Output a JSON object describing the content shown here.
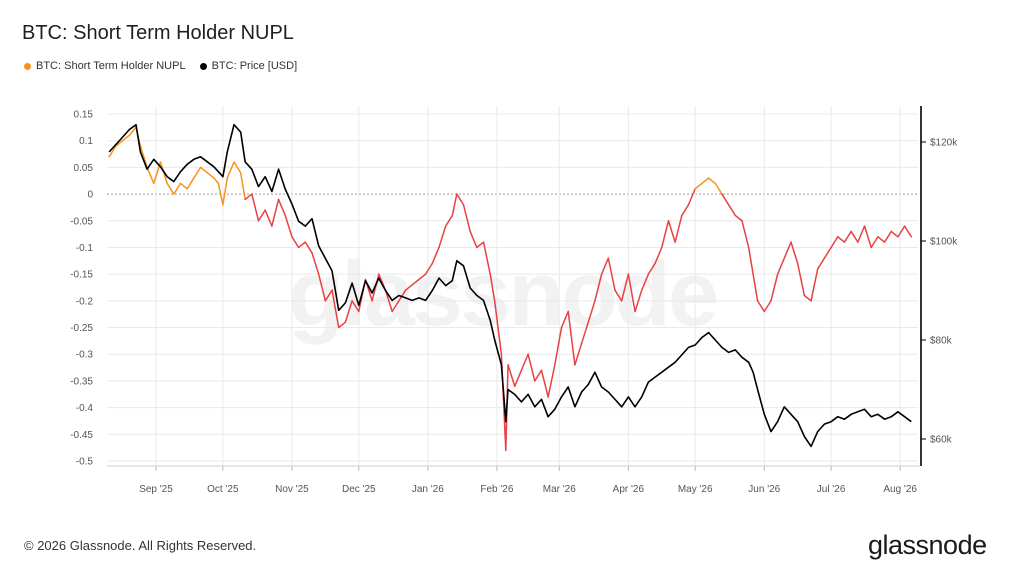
{
  "title": "BTC: Short Term Holder NUPL",
  "legend": [
    {
      "label": "BTC: Short Term Holder NUPL",
      "color": "#f7931a"
    },
    {
      "label": "BTC: Price [USD]",
      "color": "#000000"
    }
  ],
  "watermark": "glassnode",
  "footer": {
    "copyright": "© 2026 Glassnode. All Rights Reserved.",
    "brand": "glassnode"
  },
  "colors": {
    "nupl_positive": "#f7931a",
    "nupl_negative": "#e84142",
    "price": "#000000",
    "grid": "#e9e9e9"
  },
  "chart_data": {
    "type": "line",
    "title": "BTC: Short Term Holder NUPL",
    "x_tick_labels": [
      "Sep '25",
      "Oct '25",
      "Nov '25",
      "Dec '25",
      "Jan '26",
      "Feb '26",
      "Mar '26",
      "Apr '26",
      "May '26",
      "Jun '26",
      "Jul '26",
      "Aug '26"
    ],
    "y_left_ticks": [
      "0.15",
      "0.1",
      "0.05",
      "0",
      "-0.05",
      "-0.1",
      "-0.15",
      "-0.2",
      "-0.25",
      "-0.3",
      "-0.35",
      "-0.4",
      "-0.45",
      "-0.5"
    ],
    "y_left_lim": [
      -0.5,
      0.15
    ],
    "y_right_ticks": [
      "$120k",
      "$100k",
      "$80k",
      "$60k"
    ],
    "y_right_lim": [
      56000,
      128000
    ],
    "grid": true,
    "legend_position": "top-left",
    "series": [
      {
        "name": "BTC: Short Term Holder NUPL",
        "axis": "left",
        "points": [
          [
            "2025-08-11",
            0.07
          ],
          [
            "2025-08-14",
            0.09
          ],
          [
            "2025-08-17",
            0.1
          ],
          [
            "2025-08-20",
            0.11
          ],
          [
            "2025-08-23",
            0.125
          ],
          [
            "2025-08-25",
            0.09
          ],
          [
            "2025-08-28",
            0.05
          ],
          [
            "2025-08-31",
            0.02
          ],
          [
            "2025-09-03",
            0.06
          ],
          [
            "2025-09-06",
            0.02
          ],
          [
            "2025-09-09",
            0.0
          ],
          [
            "2025-09-12",
            0.02
          ],
          [
            "2025-09-15",
            0.01
          ],
          [
            "2025-09-18",
            0.03
          ],
          [
            "2025-09-21",
            0.05
          ],
          [
            "2025-09-24",
            0.04
          ],
          [
            "2025-09-27",
            0.03
          ],
          [
            "2025-09-29",
            0.02
          ],
          [
            "2025-10-01",
            -0.02
          ],
          [
            "2025-10-03",
            0.03
          ],
          [
            "2025-10-06",
            0.06
          ],
          [
            "2025-10-09",
            0.04
          ],
          [
            "2025-10-11",
            -0.01
          ],
          [
            "2025-10-14",
            0.0
          ],
          [
            "2025-10-17",
            -0.05
          ],
          [
            "2025-10-20",
            -0.03
          ],
          [
            "2025-10-23",
            -0.06
          ],
          [
            "2025-10-26",
            -0.01
          ],
          [
            "2025-10-29",
            -0.04
          ],
          [
            "2025-11-01",
            -0.08
          ],
          [
            "2025-11-04",
            -0.1
          ],
          [
            "2025-11-07",
            -0.09
          ],
          [
            "2025-11-10",
            -0.11
          ],
          [
            "2025-11-13",
            -0.15
          ],
          [
            "2025-11-16",
            -0.2
          ],
          [
            "2025-11-19",
            -0.18
          ],
          [
            "2025-11-22",
            -0.25
          ],
          [
            "2025-11-25",
            -0.24
          ],
          [
            "2025-11-28",
            -0.2
          ],
          [
            "2025-12-01",
            -0.22
          ],
          [
            "2025-12-04",
            -0.16
          ],
          [
            "2025-12-07",
            -0.2
          ],
          [
            "2025-12-10",
            -0.15
          ],
          [
            "2025-12-13",
            -0.18
          ],
          [
            "2025-12-16",
            -0.22
          ],
          [
            "2025-12-19",
            -0.2
          ],
          [
            "2025-12-22",
            -0.18
          ],
          [
            "2025-12-25",
            -0.17
          ],
          [
            "2025-12-28",
            -0.16
          ],
          [
            "2025-12-31",
            -0.15
          ],
          [
            "2026-01-03",
            -0.13
          ],
          [
            "2026-01-06",
            -0.1
          ],
          [
            "2026-01-09",
            -0.06
          ],
          [
            "2026-01-12",
            -0.04
          ],
          [
            "2026-01-14",
            0.0
          ],
          [
            "2026-01-17",
            -0.02
          ],
          [
            "2026-01-20",
            -0.07
          ],
          [
            "2026-01-23",
            -0.1
          ],
          [
            "2026-01-26",
            -0.09
          ],
          [
            "2026-01-29",
            -0.15
          ],
          [
            "2026-01-31",
            -0.2
          ],
          [
            "2026-02-03",
            -0.3
          ],
          [
            "2026-02-05",
            -0.48
          ],
          [
            "2026-02-06",
            -0.32
          ],
          [
            "2026-02-09",
            -0.36
          ],
          [
            "2026-02-12",
            -0.33
          ],
          [
            "2026-02-15",
            -0.3
          ],
          [
            "2026-02-18",
            -0.35
          ],
          [
            "2026-02-21",
            -0.33
          ],
          [
            "2026-02-24",
            -0.38
          ],
          [
            "2026-02-27",
            -0.32
          ],
          [
            "2026-03-02",
            -0.25
          ],
          [
            "2026-03-05",
            -0.22
          ],
          [
            "2026-03-08",
            -0.32
          ],
          [
            "2026-03-11",
            -0.28
          ],
          [
            "2026-03-14",
            -0.24
          ],
          [
            "2026-03-17",
            -0.2
          ],
          [
            "2026-03-20",
            -0.15
          ],
          [
            "2026-03-23",
            -0.12
          ],
          [
            "2026-03-26",
            -0.18
          ],
          [
            "2026-03-29",
            -0.2
          ],
          [
            "2026-04-01",
            -0.15
          ],
          [
            "2026-04-04",
            -0.22
          ],
          [
            "2026-04-07",
            -0.18
          ],
          [
            "2026-04-10",
            -0.15
          ],
          [
            "2026-04-13",
            -0.13
          ],
          [
            "2026-04-16",
            -0.1
          ],
          [
            "2026-04-19",
            -0.05
          ],
          [
            "2026-04-22",
            -0.09
          ],
          [
            "2026-04-25",
            -0.04
          ],
          [
            "2026-04-28",
            -0.02
          ],
          [
            "2026-05-01",
            0.01
          ],
          [
            "2026-05-04",
            0.02
          ],
          [
            "2026-05-07",
            0.03
          ],
          [
            "2026-05-10",
            0.02
          ],
          [
            "2026-05-13",
            0.0
          ],
          [
            "2026-05-16",
            -0.02
          ],
          [
            "2026-05-19",
            -0.04
          ],
          [
            "2026-05-22",
            -0.05
          ],
          [
            "2026-05-25",
            -0.1
          ],
          [
            "2026-05-27",
            -0.15
          ],
          [
            "2026-05-29",
            -0.2
          ],
          [
            "2026-06-01",
            -0.22
          ],
          [
            "2026-06-04",
            -0.2
          ],
          [
            "2026-06-07",
            -0.15
          ],
          [
            "2026-06-10",
            -0.12
          ],
          [
            "2026-06-13",
            -0.09
          ],
          [
            "2026-06-16",
            -0.13
          ],
          [
            "2026-06-19",
            -0.19
          ],
          [
            "2026-06-22",
            -0.2
          ],
          [
            "2026-06-25",
            -0.14
          ],
          [
            "2026-06-28",
            -0.12
          ],
          [
            "2026-07-01",
            -0.1
          ],
          [
            "2026-07-04",
            -0.08
          ],
          [
            "2026-07-07",
            -0.09
          ],
          [
            "2026-07-10",
            -0.07
          ],
          [
            "2026-07-13",
            -0.09
          ],
          [
            "2026-07-16",
            -0.06
          ],
          [
            "2026-07-19",
            -0.1
          ],
          [
            "2026-07-22",
            -0.08
          ],
          [
            "2026-07-25",
            -0.09
          ],
          [
            "2026-07-28",
            -0.07
          ],
          [
            "2026-07-31",
            -0.08
          ],
          [
            "2026-08-03",
            -0.06
          ],
          [
            "2026-08-06",
            -0.08
          ]
        ]
      },
      {
        "name": "BTC: Price [USD]",
        "axis": "right",
        "points": [
          [
            "2025-08-11",
            118000
          ],
          [
            "2025-08-14",
            119500
          ],
          [
            "2025-08-17",
            121000
          ],
          [
            "2025-08-20",
            122500
          ],
          [
            "2025-08-23",
            123500
          ],
          [
            "2025-08-25",
            118000
          ],
          [
            "2025-08-28",
            114500
          ],
          [
            "2025-08-31",
            116500
          ],
          [
            "2025-09-03",
            115000
          ],
          [
            "2025-09-06",
            113000
          ],
          [
            "2025-09-09",
            112000
          ],
          [
            "2025-09-12",
            114000
          ],
          [
            "2025-09-15",
            115500
          ],
          [
            "2025-09-18",
            116500
          ],
          [
            "2025-09-21",
            117000
          ],
          [
            "2025-09-24",
            116000
          ],
          [
            "2025-09-27",
            115000
          ],
          [
            "2025-09-29",
            114000
          ],
          [
            "2025-10-01",
            113000
          ],
          [
            "2025-10-03",
            118000
          ],
          [
            "2025-10-06",
            123500
          ],
          [
            "2025-10-09",
            122000
          ],
          [
            "2025-10-11",
            116000
          ],
          [
            "2025-10-14",
            114500
          ],
          [
            "2025-10-17",
            111000
          ],
          [
            "2025-10-20",
            113000
          ],
          [
            "2025-10-23",
            110000
          ],
          [
            "2025-10-26",
            114500
          ],
          [
            "2025-10-29",
            110500
          ],
          [
            "2025-11-01",
            107500
          ],
          [
            "2025-11-04",
            104000
          ],
          [
            "2025-11-07",
            103000
          ],
          [
            "2025-11-10",
            104500
          ],
          [
            "2025-11-13",
            99000
          ],
          [
            "2025-11-16",
            96500
          ],
          [
            "2025-11-19",
            94000
          ],
          [
            "2025-11-22",
            86000
          ],
          [
            "2025-11-25",
            87500
          ],
          [
            "2025-11-28",
            91500
          ],
          [
            "2025-12-01",
            87000
          ],
          [
            "2025-12-04",
            92000
          ],
          [
            "2025-12-07",
            89500
          ],
          [
            "2025-12-10",
            92500
          ],
          [
            "2025-12-13",
            90000
          ],
          [
            "2025-12-16",
            88000
          ],
          [
            "2025-12-19",
            89000
          ],
          [
            "2025-12-22",
            88500
          ],
          [
            "2025-12-25",
            88000
          ],
          [
            "2025-12-28",
            88500
          ],
          [
            "2025-12-31",
            88000
          ],
          [
            "2026-01-03",
            90000
          ],
          [
            "2026-01-06",
            92500
          ],
          [
            "2026-01-09",
            91000
          ],
          [
            "2026-01-12",
            92000
          ],
          [
            "2026-01-14",
            96000
          ],
          [
            "2026-01-17",
            95000
          ],
          [
            "2026-01-20",
            90500
          ],
          [
            "2026-01-23",
            89000
          ],
          [
            "2026-01-26",
            88000
          ],
          [
            "2026-01-29",
            84000
          ],
          [
            "2026-01-31",
            80000
          ],
          [
            "2026-02-03",
            75000
          ],
          [
            "2026-02-05",
            63500
          ],
          [
            "2026-02-06",
            70000
          ],
          [
            "2026-02-09",
            69000
          ],
          [
            "2026-02-12",
            67500
          ],
          [
            "2026-02-15",
            69000
          ],
          [
            "2026-02-18",
            66500
          ],
          [
            "2026-02-21",
            68000
          ],
          [
            "2026-02-24",
            64500
          ],
          [
            "2026-02-27",
            66000
          ],
          [
            "2026-03-02",
            68500
          ],
          [
            "2026-03-05",
            70500
          ],
          [
            "2026-03-08",
            66500
          ],
          [
            "2026-03-11",
            69500
          ],
          [
            "2026-03-14",
            71000
          ],
          [
            "2026-03-17",
            73500
          ],
          [
            "2026-03-20",
            70500
          ],
          [
            "2026-03-23",
            69500
          ],
          [
            "2026-03-26",
            68000
          ],
          [
            "2026-03-29",
            66500
          ],
          [
            "2026-04-01",
            68500
          ],
          [
            "2026-04-04",
            66500
          ],
          [
            "2026-04-07",
            68500
          ],
          [
            "2026-04-10",
            71500
          ],
          [
            "2026-04-13",
            72500
          ],
          [
            "2026-04-16",
            73500
          ],
          [
            "2026-04-19",
            74500
          ],
          [
            "2026-04-22",
            75500
          ],
          [
            "2026-04-25",
            77000
          ],
          [
            "2026-04-28",
            78500
          ],
          [
            "2026-05-01",
            79000
          ],
          [
            "2026-05-04",
            80500
          ],
          [
            "2026-05-07",
            81500
          ],
          [
            "2026-05-10",
            80000
          ],
          [
            "2026-05-13",
            78500
          ],
          [
            "2026-05-16",
            77500
          ],
          [
            "2026-05-19",
            78000
          ],
          [
            "2026-05-22",
            76500
          ],
          [
            "2026-05-25",
            75500
          ],
          [
            "2026-05-27",
            73500
          ],
          [
            "2026-05-29",
            70000
          ],
          [
            "2026-06-01",
            65000
          ],
          [
            "2026-06-04",
            61500
          ],
          [
            "2026-06-07",
            63500
          ],
          [
            "2026-06-10",
            66500
          ],
          [
            "2026-06-13",
            65000
          ],
          [
            "2026-06-16",
            63500
          ],
          [
            "2026-06-19",
            60500
          ],
          [
            "2026-06-22",
            58500
          ],
          [
            "2026-06-25",
            61500
          ],
          [
            "2026-06-28",
            63000
          ],
          [
            "2026-07-01",
            63500
          ],
          [
            "2026-07-04",
            64500
          ],
          [
            "2026-07-07",
            64000
          ],
          [
            "2026-07-10",
            65000
          ],
          [
            "2026-07-13",
            65500
          ],
          [
            "2026-07-16",
            66000
          ],
          [
            "2026-07-19",
            64500
          ],
          [
            "2026-07-22",
            65000
          ],
          [
            "2026-07-25",
            64000
          ],
          [
            "2026-07-28",
            64500
          ],
          [
            "2026-07-31",
            65500
          ],
          [
            "2026-08-03",
            64500
          ],
          [
            "2026-08-06",
            63500
          ]
        ]
      }
    ]
  }
}
